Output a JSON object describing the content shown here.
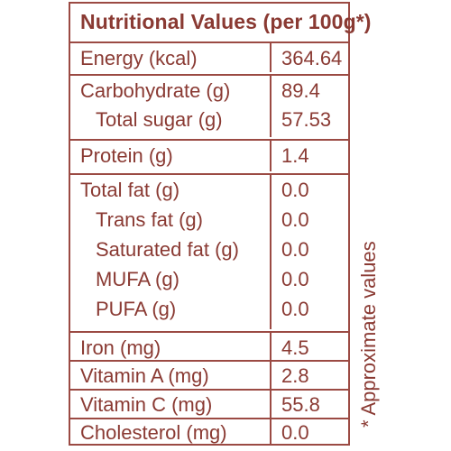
{
  "title": "Nutritional Values (per 100g*)",
  "groups": [
    [
      {
        "label": "Energy (kcal)",
        "value": "364.64"
      }
    ],
    [
      {
        "label": "Carbohydrate (g)",
        "value": "89.4"
      },
      {
        "label": "Total sugar (g)",
        "value": "57.53"
      }
    ],
    [
      {
        "label": "Protein (g)",
        "value": "1.4"
      }
    ],
    [
      {
        "label": "Total fat (g)",
        "value": "0.0"
      },
      {
        "label": "Trans fat (g)",
        "value": "0.0"
      },
      {
        "label": "Saturated fat (g)",
        "value": "0.0"
      },
      {
        "label": "MUFA (g)",
        "value": "0.0"
      },
      {
        "label": "PUFA (g)",
        "value": "0.0"
      }
    ],
    [
      {
        "label": "Iron (mg)",
        "value": "4.5"
      }
    ],
    [
      {
        "label": "Vitamin A (mg)",
        "value": "2.8"
      }
    ],
    [
      {
        "label": "Vitamin C (mg)",
        "value": "55.8"
      }
    ],
    [
      {
        "label": "Cholesterol (mg)",
        "value": "0.0"
      }
    ]
  ],
  "footnote": "* Approximate values",
  "colors": {
    "brand": "#8a3a33",
    "border": "#9b4a43"
  }
}
